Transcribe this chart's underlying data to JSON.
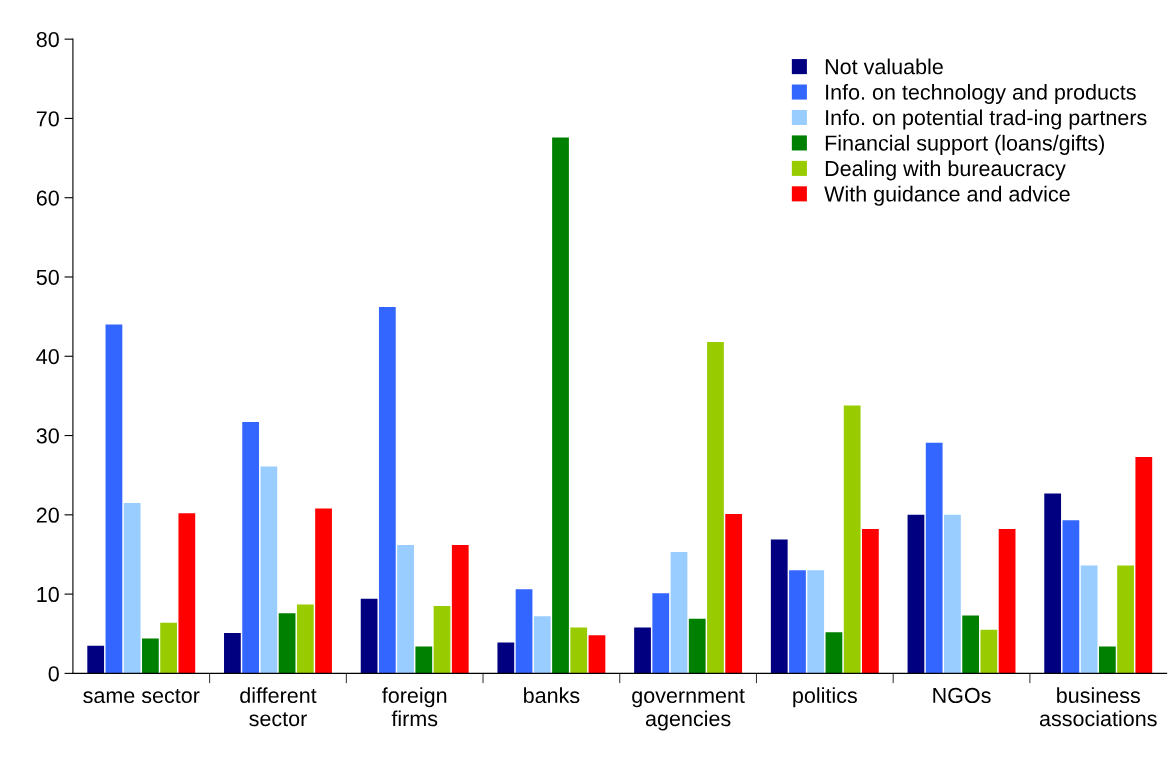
{
  "chart_data": {
    "type": "bar",
    "categories": [
      "same sector",
      "different\nsector",
      "foreign\nfirms",
      "banks",
      "government\nagencies",
      "politics",
      "NGOs",
      "business\nassociations"
    ],
    "series": [
      {
        "name": "Not valuable",
        "color": "#000080",
        "values": [
          3.5,
          5.1,
          9.4,
          3.9,
          5.8,
          16.9,
          20.0,
          22.7
        ]
      },
      {
        "name": "Info. on technology and products",
        "color": "#3366ff",
        "values": [
          44.0,
          31.7,
          46.2,
          10.6,
          10.1,
          13.0,
          29.1,
          19.3
        ]
      },
      {
        "name": "Info. on potential trad-ing partners",
        "color": "#99ccff",
        "values": [
          21.5,
          26.1,
          16.2,
          7.2,
          15.3,
          13.0,
          20.0,
          13.6
        ]
      },
      {
        "name": "Financial support (loans/gifts)",
        "color": "#008000",
        "values": [
          4.4,
          7.6,
          3.4,
          67.6,
          6.9,
          5.2,
          7.3,
          3.4
        ]
      },
      {
        "name": "Dealing with bureaucracy",
        "color": "#99cc00",
        "values": [
          6.4,
          8.7,
          8.5,
          5.8,
          41.8,
          33.8,
          5.5,
          13.6
        ]
      },
      {
        "name": "With guidance and advice",
        "color": "#ff0000",
        "values": [
          20.2,
          20.8,
          16.2,
          4.8,
          20.1,
          18.2,
          18.2,
          27.3
        ]
      }
    ],
    "ylim": [
      0,
      80
    ],
    "yticks": [
      0,
      10,
      20,
      30,
      40,
      50,
      60,
      70,
      80
    ],
    "grid": false,
    "legend": "top right"
  }
}
